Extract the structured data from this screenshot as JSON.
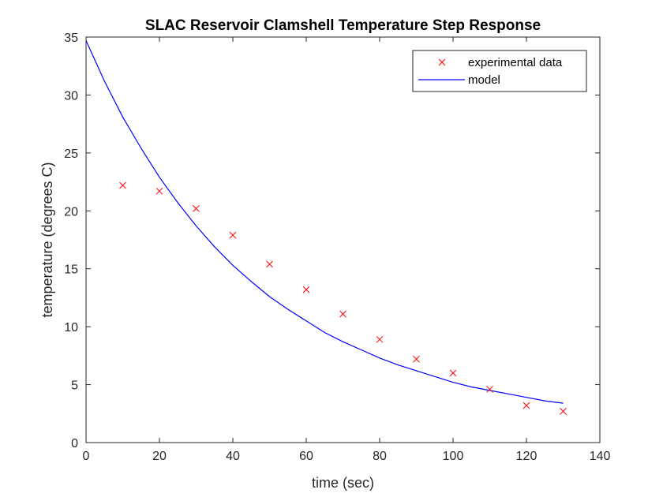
{
  "chart_data": {
    "type": "scatter",
    "title": "SLAC Reservoir Clamshell Temperature Step Response",
    "xlabel": "time (sec)",
    "ylabel": "temperature (degrees C)",
    "xlim": [
      0,
      140
    ],
    "ylim": [
      0,
      35
    ],
    "xticks": [
      0,
      20,
      40,
      60,
      80,
      100,
      120,
      140
    ],
    "yticks": [
      0,
      5,
      10,
      15,
      20,
      25,
      30,
      35
    ],
    "grid": false,
    "legend_position": "top-right",
    "series": [
      {
        "name": "experimental data",
        "type": "scatter",
        "marker": "x",
        "color": "#ff0000",
        "x": [
          10,
          20,
          30,
          40,
          50,
          60,
          70,
          80,
          90,
          100,
          110,
          120,
          130
        ],
        "y": [
          22.2,
          21.7,
          20.2,
          17.9,
          15.4,
          13.2,
          11.1,
          8.9,
          7.2,
          6.0,
          4.6,
          3.2,
          2.7
        ]
      },
      {
        "name": "model",
        "type": "line",
        "color": "#0000ff",
        "x": [
          0,
          5,
          10,
          15,
          20,
          25,
          30,
          35,
          40,
          45,
          50,
          55,
          60,
          65,
          70,
          75,
          80,
          85,
          90,
          95,
          100,
          105,
          110,
          115,
          120,
          125,
          130
        ],
        "y": [
          34.7,
          31.2,
          28.1,
          25.4,
          22.9,
          20.7,
          18.7,
          16.9,
          15.3,
          13.9,
          12.6,
          11.5,
          10.5,
          9.5,
          8.7,
          8.0,
          7.3,
          6.7,
          6.2,
          5.7,
          5.2,
          4.8,
          4.5,
          4.2,
          3.9,
          3.6,
          3.4
        ]
      }
    ]
  }
}
